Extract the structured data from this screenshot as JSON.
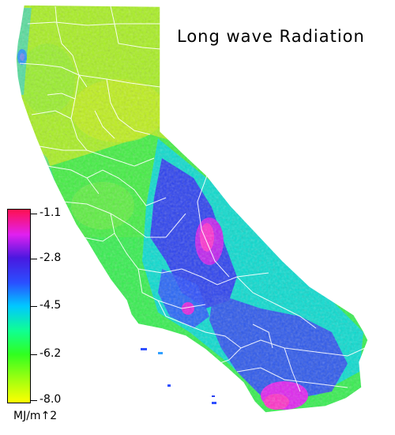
{
  "title": "Long wave Radiation",
  "legend": {
    "unit": "MJ/m↑2",
    "ticks": [
      "-1.1",
      "-2.8",
      "-4.5",
      "-6.2",
      "-8.0"
    ],
    "colors": [
      "#ff1050",
      "#e020f0",
      "#4a18e0",
      "#2a50ff",
      "#00c8ff",
      "#10ff90",
      "#30ff20",
      "#a0ff10",
      "#ffff00"
    ]
  }
}
